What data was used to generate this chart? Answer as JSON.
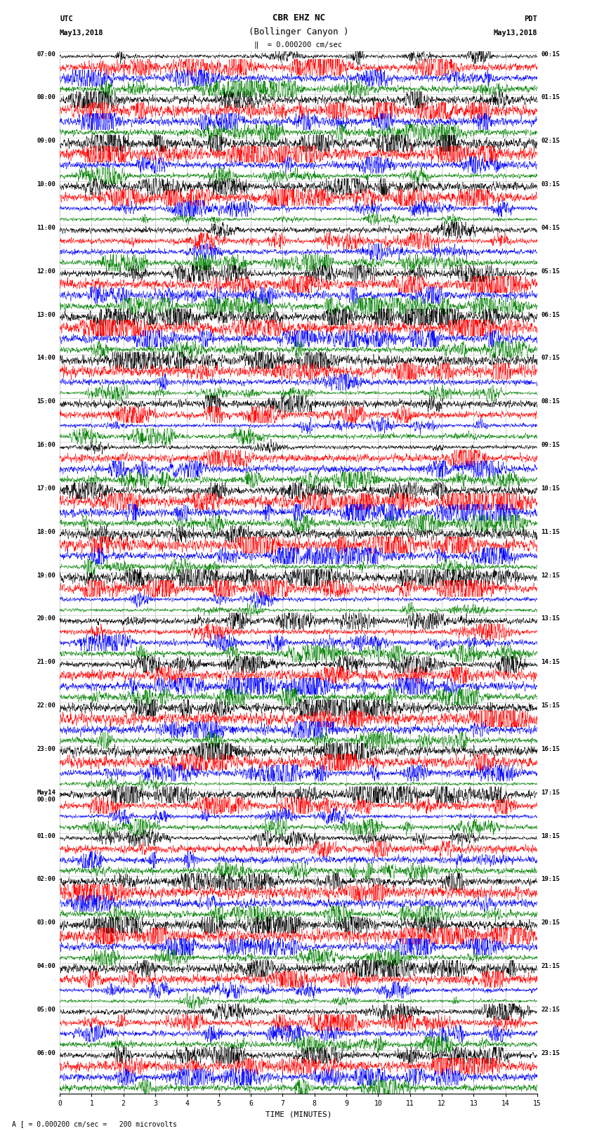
{
  "title_line1": "CBR EHZ NC",
  "title_line2": "(Bollinger Canyon )",
  "scale_label": "= 0.000200 cm/sec",
  "utc_label": "UTC",
  "utc_date": "May13,2018",
  "pdt_label": "PDT",
  "pdt_date": "May13,2018",
  "footer_label": "A [ = 0.000200 cm/sec =   200 microvolts",
  "xlabel": "TIME (MINUTES)",
  "bg_color": "#ffffff",
  "trace_colors": [
    "black",
    "red",
    "blue",
    "green"
  ],
  "n_hour_rows": 24,
  "traces_per_hour": 4,
  "minutes_per_row": 15,
  "left_times_utc": [
    "07:00",
    "08:00",
    "09:00",
    "10:00",
    "11:00",
    "12:00",
    "13:00",
    "14:00",
    "15:00",
    "16:00",
    "17:00",
    "18:00",
    "19:00",
    "20:00",
    "21:00",
    "22:00",
    "23:00",
    "May14\n00:00",
    "01:00",
    "02:00",
    "03:00",
    "04:00",
    "05:00",
    "06:00"
  ],
  "right_times_pdt": [
    "00:15",
    "01:15",
    "02:15",
    "03:15",
    "04:15",
    "05:15",
    "06:15",
    "07:15",
    "08:15",
    "09:15",
    "10:15",
    "11:15",
    "12:15",
    "13:15",
    "14:15",
    "15:15",
    "16:15",
    "17:15",
    "18:15",
    "19:15",
    "20:15",
    "21:15",
    "22:15",
    "23:15"
  ],
  "seed": 42,
  "grid_color": "#888888",
  "grid_linewidth": 0.5
}
